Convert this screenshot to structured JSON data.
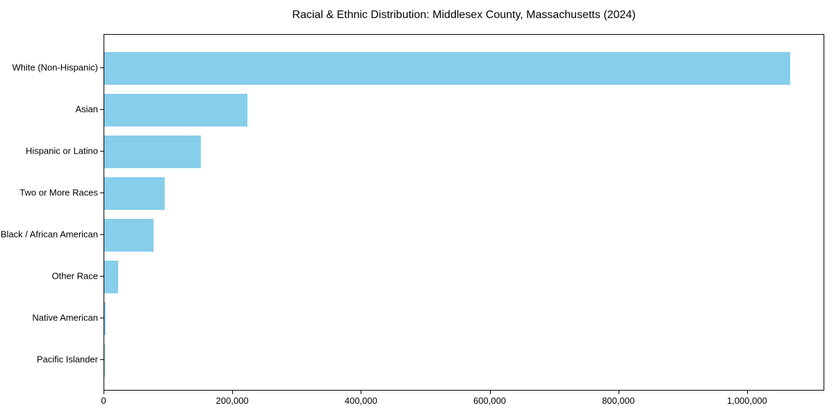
{
  "title": "Racial & Ethnic Distribution: Middlesex County, Massachusetts (2024)",
  "colors": {
    "bar": "#87CEEB",
    "axis": "#000000",
    "background": "#ffffff",
    "text": "#000000"
  },
  "chart_data": {
    "type": "bar",
    "orientation": "horizontal",
    "title": "Racial & Ethnic Distribution: Middlesex County, Massachusetts (2024)",
    "xlabel": "",
    "ylabel": "",
    "categories": [
      "White (Non-Hispanic)",
      "Asian",
      "Hispanic or Latino",
      "Two or More Races",
      "Black / African American",
      "Other Race",
      "Native American",
      "Pacific Islander"
    ],
    "values": [
      1066000,
      222000,
      150000,
      94000,
      77000,
      22000,
      2000,
      500
    ],
    "xlim": [
      0,
      1120000
    ],
    "x_ticks": [
      0,
      200000,
      400000,
      600000,
      800000,
      1000000
    ],
    "x_tick_labels": [
      "0",
      "200,000",
      "400,000",
      "600,000",
      "800,000",
      "1,000,000"
    ],
    "bar_color": "#87CEEB",
    "grid": false,
    "legend": "none"
  }
}
